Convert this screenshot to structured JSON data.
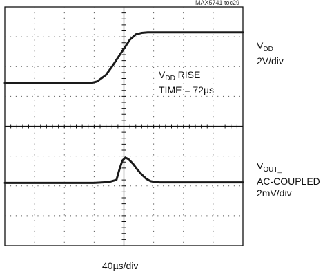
{
  "figure_id": "MAX5741 toc29",
  "channel_1": {
    "name_main": "V",
    "name_sub": "DD",
    "scale": "2V/div"
  },
  "channel_2": {
    "name_main": "V",
    "name_sub": "OUT_",
    "coupling": "AC-COUPLED",
    "scale": "2mV/div"
  },
  "annotation": {
    "line1_main": "V",
    "line1_sub": "DD",
    "line1_rest": " RISE",
    "line2": "TIME = 72µs"
  },
  "timebase": "40µs/div",
  "chart_data": {
    "type": "line",
    "title": "",
    "x_divisions": 8,
    "y_divisions": 8,
    "grid": true,
    "x_unit": "div",
    "y_unit": "div",
    "xlim": [
      0,
      8
    ],
    "ylim": [
      0,
      8
    ],
    "series": [
      {
        "name": "VDD",
        "color": "#1a1a1a",
        "x": [
          0,
          1,
          2,
          2.9,
          3.1,
          3.4,
          3.6,
          3.8,
          4.0,
          4.2,
          4.4,
          4.6,
          4.8,
          5.0,
          5.5,
          6,
          7,
          8
        ],
        "y": [
          5.45,
          5.45,
          5.45,
          5.45,
          5.5,
          5.72,
          6.0,
          6.3,
          6.6,
          6.9,
          7.08,
          7.13,
          7.15,
          7.15,
          7.15,
          7.15,
          7.15,
          7.15
        ]
      },
      {
        "name": "VOUT_",
        "color": "#1a1a1a",
        "x": [
          0,
          1,
          2,
          3.0,
          3.5,
          3.75,
          3.85,
          3.95,
          4.05,
          4.15,
          4.3,
          4.45,
          4.6,
          4.75,
          4.9,
          5.05,
          5.2,
          6,
          7,
          8
        ],
        "y": [
          2.1,
          2.1,
          2.1,
          2.1,
          2.13,
          2.2,
          2.55,
          2.85,
          2.95,
          2.9,
          2.75,
          2.55,
          2.38,
          2.24,
          2.16,
          2.13,
          2.12,
          2.12,
          2.12,
          2.12
        ]
      }
    ]
  }
}
